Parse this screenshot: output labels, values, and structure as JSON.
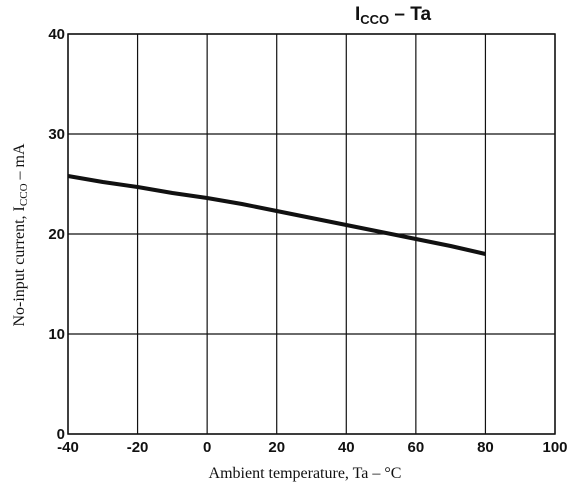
{
  "chart_data": {
    "type": "line",
    "title": {
      "main": "I",
      "sub": "CCO",
      "suffix": " – Ta"
    },
    "xlabel": "Ambient temperature, Ta  – °C",
    "ylabel": {
      "prefix": "No-input current, I",
      "sub": "CCO",
      "suffix": " – mA"
    },
    "xlim": [
      -40,
      100
    ],
    "ylim": [
      0,
      40
    ],
    "xticks": [
      -40,
      -20,
      0,
      20,
      40,
      60,
      80,
      100
    ],
    "yticks": [
      0,
      10,
      20,
      30,
      40
    ],
    "grid": true,
    "series": [
      {
        "x": [
          -40,
          -30,
          -20,
          -10,
          0,
          10,
          20,
          30,
          40,
          50,
          60,
          70,
          80
        ],
        "y": [
          25.8,
          25.2,
          24.7,
          24.1,
          23.6,
          23.0,
          22.3,
          21.6,
          20.9,
          20.2,
          19.5,
          18.8,
          18.0
        ]
      }
    ],
    "colors": {
      "line": "#111111",
      "grid": "#111111"
    }
  }
}
